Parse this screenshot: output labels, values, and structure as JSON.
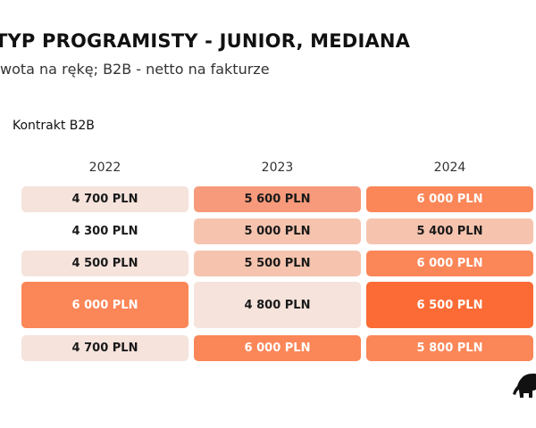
{
  "header": {
    "title": "TYP PROGRAMISTY - JUNIOR, MEDIANA",
    "subtitle": "wota na rękę; B2B - netto na fakturze"
  },
  "section_label": "Kontrakt B2B",
  "colors": {
    "very_light": "#f5e3dc",
    "light": "#f6c4ae",
    "medium": "#f79a7b",
    "strong": "#fb8657",
    "darkest": "#fc6b35",
    "plain": "#ffffff",
    "text_on_light": "#1a1a1a",
    "text_on_dark": "#ffffff"
  },
  "chart_data": {
    "type": "table",
    "title": "TYP PROGRAMISTY - JUNIOR, MEDIANA",
    "subtitle": "wota na rękę; B2B - netto na fakturze",
    "section": "Kontrakt B2B",
    "columns": [
      "2022",
      "2023",
      "2024"
    ],
    "rows": [
      {
        "values": [
          "4 700 PLN",
          "5 600 PLN",
          "6 000 PLN"
        ],
        "tones": [
          "very_light",
          "medium",
          "strong"
        ]
      },
      {
        "values": [
          "4 300 PLN",
          "5 000 PLN",
          "5 400 PLN"
        ],
        "tones": [
          "plain",
          "light",
          "light"
        ]
      },
      {
        "values": [
          "4 500 PLN",
          "5 500 PLN",
          "6 000 PLN"
        ],
        "tones": [
          "very_light",
          "light",
          "strong"
        ]
      },
      {
        "values": [
          "6 000 PLN",
          "4 800 PLN",
          "6 500 PLN"
        ],
        "tones": [
          "strong",
          "very_light",
          "darkest"
        ]
      },
      {
        "values": [
          "4 700 PLN",
          "6 000 PLN",
          "5 800 PLN"
        ],
        "tones": [
          "very_light",
          "strong",
          "strong"
        ]
      }
    ]
  },
  "logo": {
    "icon": "elephant-icon"
  }
}
